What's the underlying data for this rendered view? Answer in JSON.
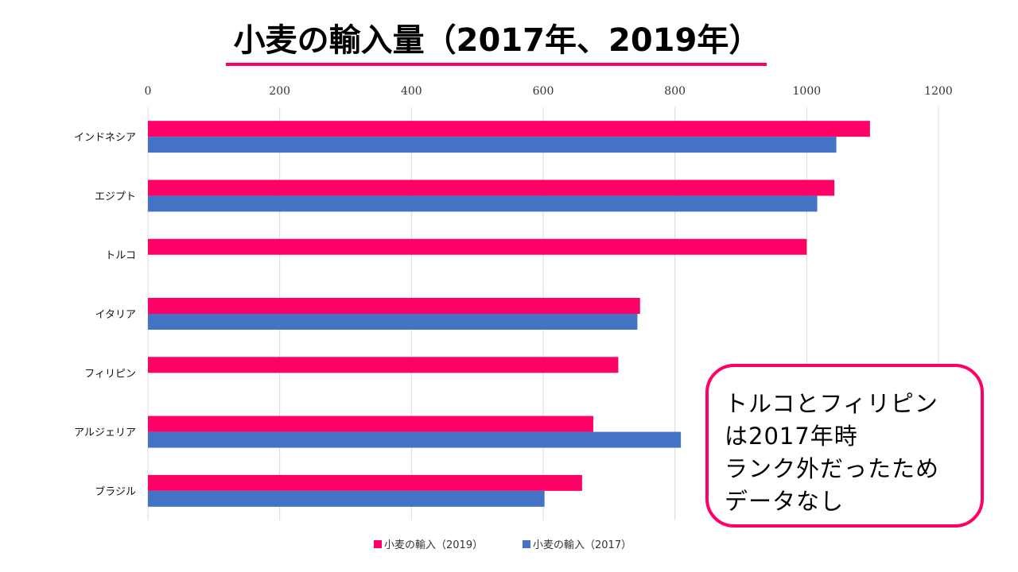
{
  "colors": {
    "accent": "#ff0066",
    "series2019": "#ff0066",
    "series2017": "#4472c4",
    "grid": "#d9d9d9"
  },
  "chart_data": {
    "type": "bar",
    "orientation": "horizontal",
    "title": "小麦の輸入量（2017年、2019年）",
    "categories": [
      "インドネシア",
      "エジプト",
      "トルコ",
      "イタリア",
      "フィリピン",
      "アルジェリア",
      "ブラジル"
    ],
    "series": [
      {
        "name": "小麦の輸入（2019）",
        "color": "#ff0066",
        "values": [
          1096,
          1042,
          1000,
          747,
          714,
          676,
          659
        ]
      },
      {
        "name": "小麦の輸入（2017）",
        "color": "#4472c4",
        "values": [
          1045,
          1016,
          null,
          743,
          null,
          809,
          602
        ]
      }
    ],
    "xlim": [
      0,
      1200
    ],
    "xticks": [
      "0",
      "200",
      "400",
      "600",
      "800",
      "1000",
      "1200"
    ],
    "grid": true,
    "legend_position": "bottom"
  },
  "annotation": {
    "lines": [
      "トルコとフィリピン",
      "は2017年時",
      "ランク外だったため",
      "データなし"
    ]
  }
}
